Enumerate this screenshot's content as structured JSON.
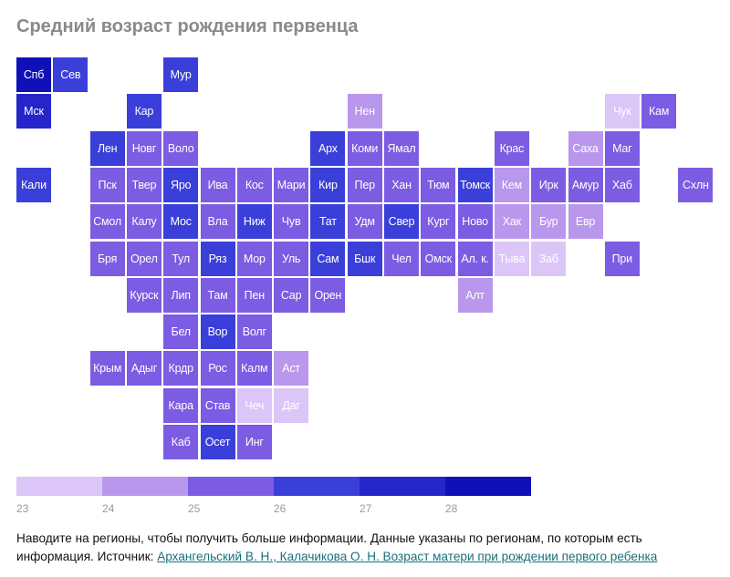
{
  "chart_data": {
    "type": "heatmap",
    "title": "Средний возраст рождения первенца",
    "legend": {
      "ticks": [
        "23",
        "24",
        "25",
        "26",
        "27",
        "28"
      ],
      "bins": [
        {
          "from": 23,
          "to": 24,
          "color": "#dcc6f8"
        },
        {
          "from": 24,
          "to": 25,
          "color": "#b997ec"
        },
        {
          "from": 25,
          "to": 26,
          "color": "#7b5ce2"
        },
        {
          "from": 26,
          "to": 27,
          "color": "#3a3fd9"
        },
        {
          "from": 27,
          "to": 28,
          "color": "#2525c9"
        },
        {
          "from": 28,
          "to": 29,
          "color": "#1010b8"
        }
      ]
    },
    "regions": [
      {
        "label": "Спб",
        "row": 0,
        "col": 0,
        "value": 28.2
      },
      {
        "label": "Сев",
        "row": 0,
        "col": 1,
        "value": 26.5
      },
      {
        "label": "Мур",
        "row": 0,
        "col": 4,
        "value": 26.5
      },
      {
        "label": "Мск",
        "row": 1,
        "col": 0,
        "value": 27.5
      },
      {
        "label": "Кар",
        "row": 1,
        "col": 3,
        "value": 26.5
      },
      {
        "label": "Нен",
        "row": 1,
        "col": 9,
        "value": 24.5
      },
      {
        "label": "Чук",
        "row": 1,
        "col": 16,
        "value": 23.5
      },
      {
        "label": "Кам",
        "row": 1,
        "col": 17,
        "value": 25.5
      },
      {
        "label": "Лен",
        "row": 2,
        "col": 2,
        "value": 26.5
      },
      {
        "label": "Новг",
        "row": 2,
        "col": 3,
        "value": 25.5
      },
      {
        "label": "Воло",
        "row": 2,
        "col": 4,
        "value": 25.5
      },
      {
        "label": "Арх",
        "row": 2,
        "col": 8,
        "value": 26.5
      },
      {
        "label": "Коми",
        "row": 2,
        "col": 9,
        "value": 25.5
      },
      {
        "label": "Ямал",
        "row": 2,
        "col": 10,
        "value": 25.5
      },
      {
        "label": "Крас",
        "row": 2,
        "col": 13,
        "value": 25.5
      },
      {
        "label": "Саха",
        "row": 2,
        "col": 15,
        "value": 24.5
      },
      {
        "label": "Маг",
        "row": 2,
        "col": 16,
        "value": 25.5
      },
      {
        "label": "Кали",
        "row": 3,
        "col": 0,
        "value": 26.5
      },
      {
        "label": "Пск",
        "row": 3,
        "col": 2,
        "value": 25.5
      },
      {
        "label": "Твер",
        "row": 3,
        "col": 3,
        "value": 25.5
      },
      {
        "label": "Яро",
        "row": 3,
        "col": 4,
        "value": 26.5
      },
      {
        "label": "Ива",
        "row": 3,
        "col": 5,
        "value": 25.5
      },
      {
        "label": "Кос",
        "row": 3,
        "col": 6,
        "value": 25.5
      },
      {
        "label": "Мари",
        "row": 3,
        "col": 7,
        "value": 25.5
      },
      {
        "label": "Кир",
        "row": 3,
        "col": 8,
        "value": 26.5
      },
      {
        "label": "Пер",
        "row": 3,
        "col": 9,
        "value": 25.5
      },
      {
        "label": "Хан",
        "row": 3,
        "col": 10,
        "value": 25.5
      },
      {
        "label": "Тюм",
        "row": 3,
        "col": 11,
        "value": 25.5
      },
      {
        "label": "Томск",
        "row": 3,
        "col": 12,
        "value": 26.5
      },
      {
        "label": "Кем",
        "row": 3,
        "col": 13,
        "value": 24.5
      },
      {
        "label": "Ирк",
        "row": 3,
        "col": 14,
        "value": 25.5
      },
      {
        "label": "Амур",
        "row": 3,
        "col": 15,
        "value": 25.5
      },
      {
        "label": "Хаб",
        "row": 3,
        "col": 16,
        "value": 25.5
      },
      {
        "label": "Схлн",
        "row": 3,
        "col": 18,
        "value": 25.5
      },
      {
        "label": "Смол",
        "row": 4,
        "col": 2,
        "value": 25.5
      },
      {
        "label": "Калу",
        "row": 4,
        "col": 3,
        "value": 25.5
      },
      {
        "label": "Мос",
        "row": 4,
        "col": 4,
        "value": 26.5
      },
      {
        "label": "Вла",
        "row": 4,
        "col": 5,
        "value": 25.5
      },
      {
        "label": "Ниж",
        "row": 4,
        "col": 6,
        "value": 26.5
      },
      {
        "label": "Чув",
        "row": 4,
        "col": 7,
        "value": 25.5
      },
      {
        "label": "Тат",
        "row": 4,
        "col": 8,
        "value": 26.5
      },
      {
        "label": "Удм",
        "row": 4,
        "col": 9,
        "value": 25.5
      },
      {
        "label": "Свер",
        "row": 4,
        "col": 10,
        "value": 26.5
      },
      {
        "label": "Кург",
        "row": 4,
        "col": 11,
        "value": 25.5
      },
      {
        "label": "Ново",
        "row": 4,
        "col": 12,
        "value": 25.5
      },
      {
        "label": "Хак",
        "row": 4,
        "col": 13,
        "value": 24.5
      },
      {
        "label": "Бур",
        "row": 4,
        "col": 14,
        "value": 24.5
      },
      {
        "label": "Евр",
        "row": 4,
        "col": 15,
        "value": 24.5
      },
      {
        "label": "Бря",
        "row": 5,
        "col": 2,
        "value": 25.5
      },
      {
        "label": "Орел",
        "row": 5,
        "col": 3,
        "value": 25.5
      },
      {
        "label": "Тул",
        "row": 5,
        "col": 4,
        "value": 25.5
      },
      {
        "label": "Ряз",
        "row": 5,
        "col": 5,
        "value": 26.5
      },
      {
        "label": "Мор",
        "row": 5,
        "col": 6,
        "value": 25.5
      },
      {
        "label": "Уль",
        "row": 5,
        "col": 7,
        "value": 25.5
      },
      {
        "label": "Сам",
        "row": 5,
        "col": 8,
        "value": 26.5
      },
      {
        "label": "Бшк",
        "row": 5,
        "col": 9,
        "value": 26.5
      },
      {
        "label": "Чел",
        "row": 5,
        "col": 10,
        "value": 25.5
      },
      {
        "label": "Омск",
        "row": 5,
        "col": 11,
        "value": 25.5
      },
      {
        "label": "Ал. к.",
        "row": 5,
        "col": 12,
        "value": 25.5
      },
      {
        "label": "Тыва",
        "row": 5,
        "col": 13,
        "value": 23.5
      },
      {
        "label": "Заб",
        "row": 5,
        "col": 14,
        "value": 23.5
      },
      {
        "label": "При",
        "row": 5,
        "col": 16,
        "value": 25.5
      },
      {
        "label": "Курск",
        "row": 6,
        "col": 3,
        "value": 25.5
      },
      {
        "label": "Лип",
        "row": 6,
        "col": 4,
        "value": 25.5
      },
      {
        "label": "Там",
        "row": 6,
        "col": 5,
        "value": 25.5
      },
      {
        "label": "Пен",
        "row": 6,
        "col": 6,
        "value": 25.5
      },
      {
        "label": "Сар",
        "row": 6,
        "col": 7,
        "value": 25.5
      },
      {
        "label": "Орен",
        "row": 6,
        "col": 8,
        "value": 25.5
      },
      {
        "label": "Алт",
        "row": 6,
        "col": 12,
        "value": 24.5
      },
      {
        "label": "Бел",
        "row": 7,
        "col": 4,
        "value": 25.5
      },
      {
        "label": "Вор",
        "row": 7,
        "col": 5,
        "value": 26.5
      },
      {
        "label": "Волг",
        "row": 7,
        "col": 6,
        "value": 25.5
      },
      {
        "label": "Крым",
        "row": 8,
        "col": 2,
        "value": 25.5
      },
      {
        "label": "Адыг",
        "row": 8,
        "col": 3,
        "value": 25.5
      },
      {
        "label": "Крдр",
        "row": 8,
        "col": 4,
        "value": 25.5
      },
      {
        "label": "Рос",
        "row": 8,
        "col": 5,
        "value": 25.5
      },
      {
        "label": "Калм",
        "row": 8,
        "col": 6,
        "value": 25.5
      },
      {
        "label": "Аст",
        "row": 8,
        "col": 7,
        "value": 24.5
      },
      {
        "label": "Кара",
        "row": 9,
        "col": 4,
        "value": 25.5
      },
      {
        "label": "Став",
        "row": 9,
        "col": 5,
        "value": 25.5
      },
      {
        "label": "Чеч",
        "row": 9,
        "col": 6,
        "value": 23.5
      },
      {
        "label": "Даг",
        "row": 9,
        "col": 7,
        "value": 23.5
      },
      {
        "label": "Каб",
        "row": 10,
        "col": 4,
        "value": 25.5
      },
      {
        "label": "Осет",
        "row": 10,
        "col": 5,
        "value": 26.5
      },
      {
        "label": "Инг",
        "row": 10,
        "col": 6,
        "value": 25.5
      }
    ]
  },
  "footnote": {
    "text": "Наводите на регионы, чтобы получить больше информации. Данные указаны по регионам, по которым есть информация. Источник: ",
    "link": "Архангельский В. Н., Калачикова О. Н. Возраст матери при рождении первого ребенка"
  }
}
